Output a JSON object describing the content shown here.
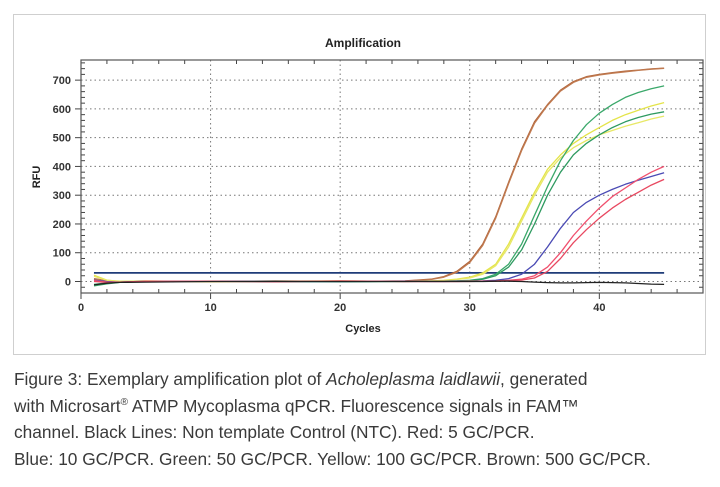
{
  "chart_data": {
    "type": "line",
    "title": "Amplification",
    "xlabel": "Cycles",
    "ylabel": "RFU",
    "xlim": [
      0,
      48
    ],
    "ylim": [
      -40,
      770
    ],
    "xticks": [
      0,
      10,
      20,
      30,
      40
    ],
    "yticks": [
      0,
      100,
      200,
      300,
      400,
      500,
      600,
      700
    ],
    "grid": true,
    "threshold": {
      "value": 30,
      "color": "#1f3c78"
    },
    "x": [
      1,
      2,
      3,
      5,
      10,
      15,
      20,
      25,
      27,
      28,
      29,
      30,
      31,
      32,
      33,
      34,
      35,
      36,
      37,
      38,
      39,
      40,
      41,
      42,
      43,
      44,
      45
    ],
    "series": [
      {
        "group": "Brown",
        "color": "#b0643a",
        "values": [
          10,
          3,
          0,
          1,
          0,
          2,
          0,
          2,
          8,
          17,
          35,
          70,
          130,
          225,
          345,
          460,
          555,
          615,
          665,
          695,
          712,
          720,
          726,
          731,
          735,
          739,
          742
        ]
      },
      {
        "group": "Brown",
        "color": "#c07a50",
        "values": [
          8,
          2,
          -1,
          0,
          1,
          1,
          0,
          1,
          7,
          15,
          32,
          66,
          125,
          220,
          340,
          455,
          550,
          612,
          662,
          692,
          710,
          718,
          724,
          729,
          734,
          738,
          741
        ]
      },
      {
        "group": "Yellow",
        "color": "#e4e44a",
        "values": [
          22,
          5,
          0,
          2,
          -1,
          1,
          2,
          0,
          2,
          4,
          8,
          15,
          30,
          60,
          130,
          220,
          310,
          390,
          440,
          480,
          510,
          535,
          560,
          580,
          595,
          610,
          622
        ]
      },
      {
        "group": "Yellow",
        "color": "#e8e866",
        "values": [
          18,
          4,
          1,
          0,
          1,
          0,
          1,
          1,
          2,
          3,
          7,
          12,
          25,
          55,
          120,
          210,
          300,
          380,
          430,
          465,
          490,
          510,
          525,
          540,
          552,
          565,
          575
        ]
      },
      {
        "group": "Green",
        "color": "#3aa86a",
        "values": [
          -15,
          -8,
          -3,
          0,
          1,
          -1,
          0,
          1,
          1,
          1,
          2,
          4,
          10,
          25,
          60,
          130,
          230,
          330,
          420,
          490,
          545,
          585,
          615,
          640,
          657,
          670,
          680
        ]
      },
      {
        "group": "Green",
        "color": "#2e9a60",
        "values": [
          -10,
          -5,
          -2,
          1,
          0,
          1,
          -1,
          0,
          1,
          1,
          2,
          3,
          8,
          20,
          50,
          110,
          200,
          300,
          380,
          440,
          480,
          510,
          535,
          555,
          570,
          582,
          590
        ]
      },
      {
        "group": "Blue",
        "color": "#4a4ab4",
        "values": [
          5,
          0,
          -2,
          0,
          1,
          0,
          0,
          1,
          0,
          0,
          1,
          1,
          2,
          4,
          10,
          25,
          60,
          120,
          185,
          240,
          275,
          300,
          320,
          338,
          352,
          365,
          378
        ]
      },
      {
        "group": "Red",
        "color": "#f0506e",
        "values": [
          3,
          -2,
          -3,
          0,
          1,
          -1,
          2,
          0,
          0,
          0,
          0,
          1,
          1,
          2,
          4,
          8,
          20,
          50,
          100,
          160,
          210,
          255,
          295,
          325,
          355,
          380,
          400
        ]
      },
      {
        "group": "Red",
        "color": "#e84860",
        "values": [
          0,
          -3,
          -2,
          1,
          0,
          0,
          1,
          0,
          0,
          0,
          0,
          0,
          1,
          1,
          3,
          5,
          12,
          35,
          80,
          135,
          180,
          220,
          255,
          285,
          310,
          335,
          355
        ]
      },
      {
        "group": "Black",
        "color": "#222222",
        "values": [
          -12,
          -6,
          -3,
          -2,
          0,
          0,
          0,
          0,
          0,
          0,
          0,
          0,
          0,
          1,
          1,
          0,
          -2,
          -4,
          -5,
          -5,
          -4,
          -3,
          -4,
          -5,
          -7,
          -9,
          -10
        ]
      }
    ]
  },
  "caption": {
    "line1_a": "Figure 3: Exemplary amplification plot of ",
    "line1_italic": "Acholeplasma laidlawii",
    "line1_b": ", generated",
    "line2_a": "with Microsart",
    "line2_sup": "®",
    "line2_b": " ATMP Mycoplasma qPCR. Fluorescence signals in FAM™",
    "line3": "channel. Black Lines: Non template Control (NTC). Red: 5 GC/PCR.",
    "line4": "Blue: 10 GC/PCR. Green: 50 GC/PCR. Yellow: 100 GC/PCR. Brown: 500 GC/PCR."
  }
}
